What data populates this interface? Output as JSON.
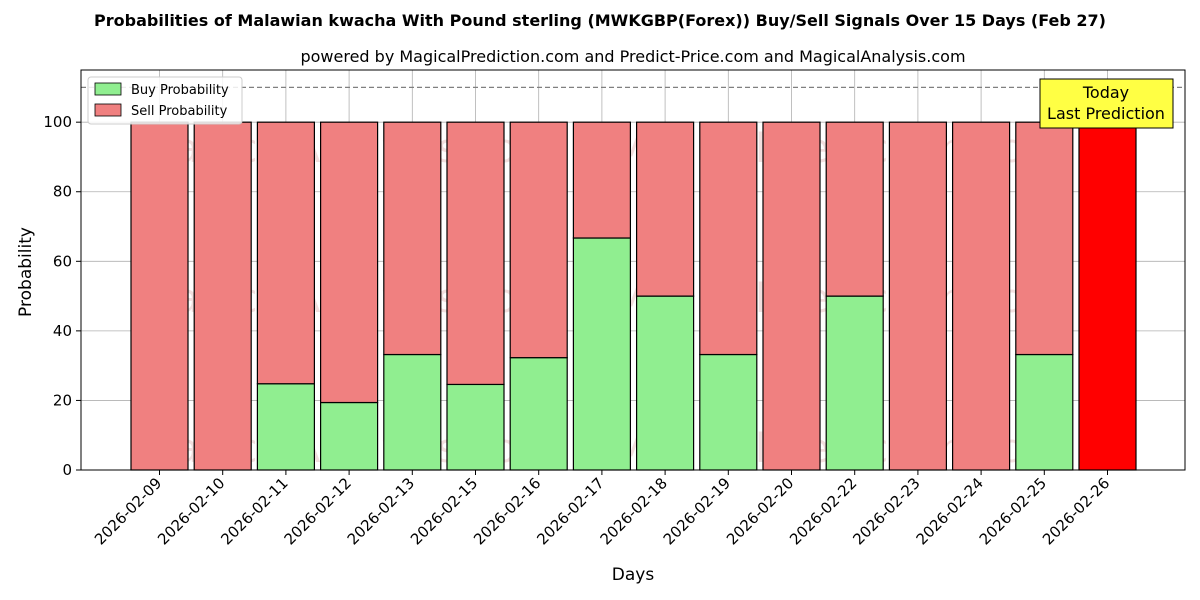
{
  "chart_data": {
    "type": "bar",
    "stacked": true,
    "title": "Probabilities of Malawian kwacha With Pound sterling (MWKGBP(Forex)) Buy/Sell Signals Over 15 Days (Feb 27)",
    "subtitle": "powered by MagicalPrediction.com and Predict-Price.com and MagicalAnalysis.com",
    "xlabel": "Days",
    "ylabel": "Probability",
    "ylim": [
      0,
      115
    ],
    "yticks": [
      0,
      20,
      40,
      60,
      80,
      100
    ],
    "reference_line": 110,
    "grid": true,
    "legend_position": "top-left",
    "categories": [
      "2026-02-09",
      "2026-02-10",
      "2026-02-11",
      "2026-02-12",
      "2026-02-13",
      "2026-02-15",
      "2026-02-16",
      "2026-02-17",
      "2026-02-18",
      "2026-02-19",
      "2026-02-20",
      "2026-02-22",
      "2026-02-23",
      "2026-02-24",
      "2026-02-25",
      "2026-02-26"
    ],
    "series": [
      {
        "name": "Buy Probability",
        "color": "#90ee90",
        "values": [
          0,
          0,
          24.8,
          19.4,
          33.2,
          24.6,
          32.3,
          66.7,
          50.0,
          33.2,
          0,
          50.0,
          0,
          0,
          33.2,
          0
        ]
      },
      {
        "name": "Sell Probability",
        "color": "#f08080",
        "values": [
          100,
          100,
          75.2,
          80.6,
          66.8,
          75.4,
          67.7,
          33.3,
          50.0,
          66.8,
          100,
          50.0,
          100,
          100,
          66.8,
          100
        ]
      }
    ],
    "highlight": {
      "index": 15,
      "color": "#ff0000"
    },
    "annotation": {
      "line1": "Today",
      "line2": "Last Prediction",
      "color": "#ffff44"
    },
    "watermarks": [
      "MagicalAnalysis.com",
      "MagicalPrediction.com"
    ]
  }
}
